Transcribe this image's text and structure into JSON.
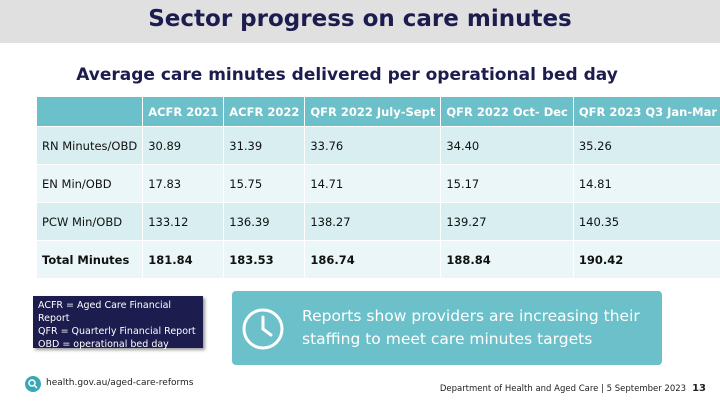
{
  "header": {
    "title": "Sector progress on care minutes"
  },
  "subtitle": "Average care minutes delivered per operational bed day",
  "table": {
    "columns": [
      "",
      "ACFR 2021",
      "ACFR 2022",
      "QFR 2022 July-Sept",
      "QFR 2022 Oct- Dec",
      "QFR 2023 Q3 Jan-Mar"
    ],
    "rows": [
      [
        "RN Minutes/OBD",
        "30.89",
        "31.39",
        "33.76",
        "34.40",
        "35.26"
      ],
      [
        "EN Min/OBD",
        "17.83",
        "15.75",
        "14.71",
        "15.17",
        "14.81"
      ],
      [
        "PCW Min/OBD",
        "133.12",
        "136.39",
        "138.27",
        "139.27",
        "140.35"
      ],
      [
        "Total Minutes",
        "181.84",
        "183.53",
        "186.74",
        "188.84",
        "190.42"
      ]
    ]
  },
  "legend": [
    "ACFR = Aged Care Financial Report",
    "QFR = Quarterly Financial Report",
    "OBD = operational bed day"
  ],
  "callout": "Reports show providers are increasing their staffing to meet care minutes targets",
  "footer": {
    "url": "health.gov.au/aged-care-reforms",
    "source": "Department of Health and Aged Care | 5 September 2023",
    "page": "13"
  }
}
